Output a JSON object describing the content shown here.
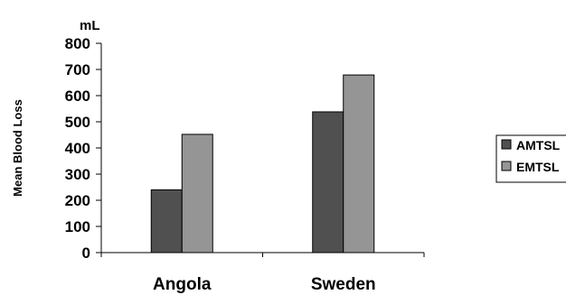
{
  "chart_data": {
    "type": "bar",
    "unit": "mL",
    "ylabel": "Mean Blood Loss",
    "xlabel": "",
    "categories": [
      "Angola",
      "Sweden"
    ],
    "series": [
      {
        "name": "AMTSL",
        "values": [
          240,
          538
        ],
        "color": "#505050"
      },
      {
        "name": "EMTSL",
        "values": [
          452,
          679
        ],
        "color": "#959595"
      }
    ],
    "ylim": [
      0,
      800
    ],
    "yticks": [
      0,
      100,
      200,
      300,
      400,
      500,
      600,
      700,
      800
    ],
    "grid": false,
    "legend_position": "right"
  }
}
